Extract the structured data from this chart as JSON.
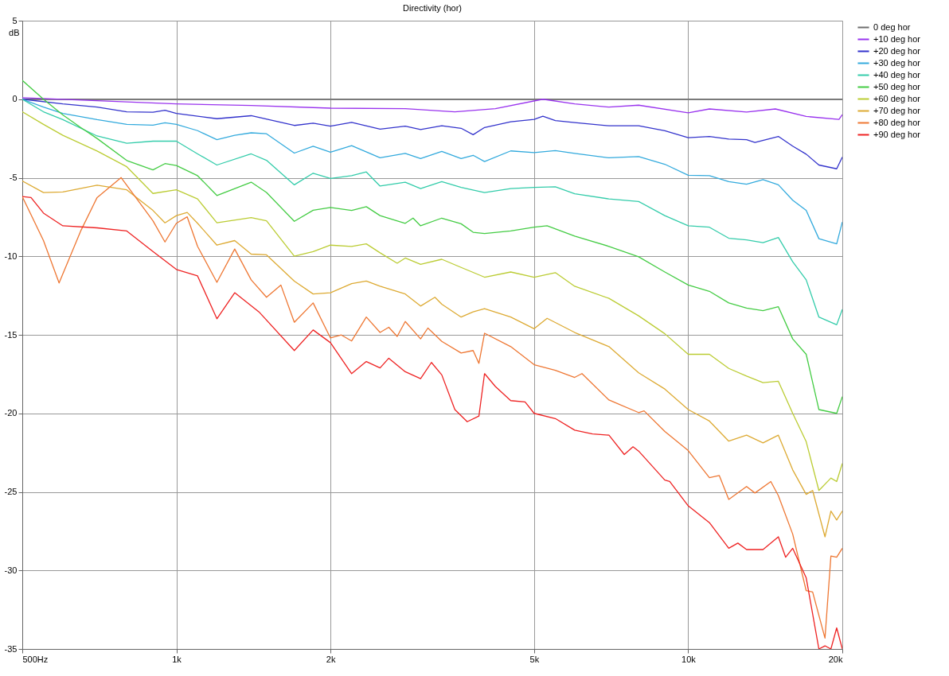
{
  "chart_data": {
    "type": "line",
    "title": "Directivity (hor)",
    "ylabel": "dB",
    "log": "x",
    "grid": true,
    "legend": "right",
    "line_style": "solid",
    "marker": "none",
    "xlim": [
      500,
      20000
    ],
    "ylim": [
      -35,
      5
    ],
    "xticks": [
      {
        "value": 500,
        "label": "500Hz"
      },
      {
        "value": 1000,
        "label": "1k"
      },
      {
        "value": 2000,
        "label": "2k"
      },
      {
        "value": 5000,
        "label": "5k"
      },
      {
        "value": 10000,
        "label": "10k"
      },
      {
        "value": 20000,
        "label": "20k"
      }
    ],
    "yticks": [
      5,
      0,
      -5,
      -10,
      -15,
      -20,
      -25,
      -30,
      -35
    ],
    "series": [
      {
        "name": "0 deg hor",
        "color": "#6e6e6e",
        "x": [
          500,
          20000
        ],
        "values": [
          0,
          0
        ]
      },
      {
        "name": "+10 deg hor",
        "color": "#9933ee",
        "x": [
          500,
          700,
          1000,
          1400,
          2000,
          2800,
          3500,
          4200,
          5200,
          6000,
          7000,
          8000,
          10000,
          11000,
          13000,
          14800,
          17000,
          19700,
          20000
        ],
        "values": [
          0.1,
          -0.1,
          -0.3,
          -0.4,
          -0.57,
          -0.6,
          -0.8,
          -0.6,
          0,
          -0.3,
          -0.5,
          -0.38,
          -0.87,
          -0.62,
          -0.82,
          -0.62,
          -1.1,
          -1.28,
          -0.98
        ]
      },
      {
        "name": "+20 deg hor",
        "color": "#3333cc",
        "x": [
          500,
          600,
          700,
          800,
          900,
          950,
          1000,
          1200,
          1400,
          1700,
          1850,
          2000,
          2200,
          2500,
          2800,
          3000,
          3300,
          3600,
          3800,
          4000,
          4500,
          5000,
          5200,
          5500,
          6000,
          7000,
          8000,
          9000,
          10000,
          11000,
          12000,
          13000,
          13500,
          15000,
          16000,
          17000,
          18000,
          19500,
          20000
        ],
        "values": [
          0,
          -0.3,
          -0.5,
          -0.8,
          -0.83,
          -0.7,
          -0.9,
          -1.24,
          -1.05,
          -1.67,
          -1.53,
          -1.72,
          -1.47,
          -1.9,
          -1.72,
          -1.93,
          -1.69,
          -1.85,
          -2.26,
          -1.8,
          -1.44,
          -1.28,
          -1.08,
          -1.36,
          -1.49,
          -1.69,
          -1.69,
          -2.01,
          -2.45,
          -2.37,
          -2.54,
          -2.58,
          -2.75,
          -2.37,
          -2.99,
          -3.5,
          -4.19,
          -4.43,
          -3.68
        ]
      },
      {
        "name": "+30 deg hor",
        "color": "#33aadd",
        "x": [
          500,
          550,
          600,
          700,
          800,
          900,
          950,
          1000,
          1100,
          1200,
          1300,
          1400,
          1500,
          1700,
          1850,
          2000,
          2200,
          2500,
          2800,
          3000,
          3300,
          3600,
          3800,
          4000,
          4500,
          5000,
          5500,
          6000,
          7000,
          8000,
          9000,
          10000,
          11000,
          12000,
          13000,
          14000,
          15000,
          16000,
          17000,
          18000,
          19500,
          20000
        ],
        "values": [
          0,
          -0.5,
          -0.9,
          -1.3,
          -1.6,
          -1.65,
          -1.5,
          -1.6,
          -2.0,
          -2.58,
          -2.3,
          -2.14,
          -2.2,
          -3.43,
          -2.99,
          -3.37,
          -2.96,
          -3.73,
          -3.45,
          -3.78,
          -3.32,
          -3.78,
          -3.57,
          -3.97,
          -3.29,
          -3.4,
          -3.27,
          -3.45,
          -3.73,
          -3.65,
          -4.14,
          -4.84,
          -4.87,
          -5.25,
          -5.41,
          -5.12,
          -5.45,
          -6.43,
          -7.08,
          -8.88,
          -9.21,
          -7.82
        ]
      },
      {
        "name": "+40 deg hor",
        "color": "#33ccaa",
        "x": [
          500,
          550,
          600,
          700,
          800,
          900,
          1000,
          1100,
          1200,
          1400,
          1500,
          1700,
          1850,
          2000,
          2200,
          2350,
          2500,
          2800,
          3000,
          3300,
          3600,
          4000,
          4500,
          5000,
          5500,
          6000,
          7000,
          8000,
          9000,
          10000,
          11000,
          12000,
          13000,
          14000,
          15000,
          16000,
          17000,
          18000,
          19500,
          20000
        ],
        "values": [
          0,
          -0.8,
          -1.3,
          -2.34,
          -2.8,
          -2.67,
          -2.67,
          -3.48,
          -4.19,
          -3.48,
          -3.89,
          -5.45,
          -4.71,
          -5.04,
          -4.87,
          -4.63,
          -5.53,
          -5.28,
          -5.69,
          -5.25,
          -5.61,
          -5.94,
          -5.69,
          -5.61,
          -5.58,
          -6.02,
          -6.35,
          -6.51,
          -7.41,
          -8.06,
          -8.15,
          -8.85,
          -8.96,
          -9.13,
          -8.8,
          -10.35,
          -11.5,
          -13.87,
          -14.36,
          -13.38
        ]
      },
      {
        "name": "+50 deg hor",
        "color": "#44cc44",
        "x": [
          500,
          550,
          600,
          650,
          700,
          800,
          900,
          950,
          1000,
          1100,
          1200,
          1400,
          1500,
          1700,
          1850,
          2000,
          2200,
          2350,
          2500,
          2800,
          2900,
          3000,
          3300,
          3600,
          3800,
          4000,
          4500,
          5000,
          5300,
          6000,
          7000,
          8000,
          9000,
          10000,
          11000,
          12000,
          13000,
          14000,
          15000,
          16000,
          17000,
          18000,
          19500,
          20000
        ],
        "values": [
          1.2,
          0,
          -1.0,
          -1.8,
          -2.5,
          -3.9,
          -4.5,
          -4.1,
          -4.22,
          -4.87,
          -6.13,
          -5.28,
          -5.94,
          -7.77,
          -7.07,
          -6.89,
          -7.08,
          -6.84,
          -7.41,
          -7.9,
          -7.57,
          -8.06,
          -7.57,
          -7.93,
          -8.47,
          -8.55,
          -8.39,
          -8.15,
          -8.06,
          -8.72,
          -9.37,
          -10.03,
          -11.0,
          -11.83,
          -12.23,
          -12.97,
          -13.3,
          -13.46,
          -13.21,
          -15.26,
          -16.24,
          -19.76,
          -20.0,
          -18.94
        ]
      },
      {
        "name": "+60 deg hor",
        "color": "#bbcc33",
        "x": [
          500,
          550,
          600,
          700,
          800,
          900,
          1000,
          1100,
          1200,
          1400,
          1500,
          1700,
          1850,
          2000,
          2200,
          2350,
          2500,
          2700,
          2800,
          3000,
          3300,
          3600,
          4000,
          4500,
          5000,
          5500,
          6000,
          7000,
          8000,
          9000,
          10000,
          11000,
          12000,
          13000,
          14000,
          15000,
          16000,
          17000,
          18000,
          19000,
          19500,
          20000
        ],
        "values": [
          -0.8,
          -1.6,
          -2.3,
          -3.3,
          -4.3,
          -6.0,
          -5.77,
          -6.35,
          -7.87,
          -7.54,
          -7.74,
          -9.99,
          -9.7,
          -9.29,
          -9.37,
          -9.21,
          -9.78,
          -10.44,
          -10.11,
          -10.51,
          -10.19,
          -10.71,
          -11.33,
          -11.0,
          -11.33,
          -11.04,
          -11.91,
          -12.68,
          -13.79,
          -14.93,
          -16.24,
          -16.24,
          -17.14,
          -17.63,
          -18.04,
          -17.96,
          -20.0,
          -21.8,
          -24.91,
          -24.12,
          -24.34,
          -23.19
        ]
      },
      {
        "name": "+70 deg hor",
        "color": "#ddaa33",
        "x": [
          500,
          550,
          600,
          700,
          800,
          900,
          950,
          1000,
          1050,
          1100,
          1200,
          1300,
          1400,
          1500,
          1700,
          1850,
          2000,
          2200,
          2350,
          2500,
          2800,
          3000,
          3200,
          3300,
          3600,
          3800,
          4000,
          4500,
          5000,
          5300,
          6000,
          7000,
          8000,
          9000,
          10000,
          11000,
          12000,
          13000,
          14000,
          15000,
          16000,
          17000,
          17500,
          18500,
          19000,
          19500,
          20000
        ],
        "values": [
          -5.2,
          -5.94,
          -5.9,
          -5.48,
          -5.77,
          -7.08,
          -7.87,
          -7.41,
          -7.21,
          -7.9,
          -9.29,
          -9.0,
          -9.86,
          -9.91,
          -11.58,
          -12.4,
          -12.32,
          -11.74,
          -11.58,
          -11.91,
          -12.4,
          -13.17,
          -12.61,
          -13.05,
          -13.87,
          -13.54,
          -13.33,
          -13.87,
          -14.61,
          -13.95,
          -14.85,
          -15.75,
          -17.42,
          -18.45,
          -19.76,
          -20.49,
          -21.77,
          -21.39,
          -21.88,
          -21.39,
          -23.6,
          -25.16,
          -24.91,
          -27.86,
          -26.22,
          -26.79,
          -26.22
        ]
      },
      {
        "name": "+80 deg hor",
        "color": "#ee7733",
        "x": [
          500,
          550,
          590,
          650,
          700,
          780,
          900,
          950,
          1000,
          1050,
          1100,
          1200,
          1300,
          1400,
          1500,
          1600,
          1700,
          1850,
          2000,
          2100,
          2200,
          2350,
          2500,
          2600,
          2700,
          2800,
          3000,
          3100,
          3300,
          3600,
          3800,
          3900,
          4000,
          4500,
          5000,
          5500,
          6000,
          6200,
          7000,
          8000,
          8200,
          9000,
          10000,
          11000,
          11500,
          12000,
          13000,
          13500,
          14500,
          15000,
          16000,
          17000,
          17500,
          18500,
          19000,
          19500,
          20000
        ],
        "values": [
          -6.2,
          -9.0,
          -11.7,
          -8.4,
          -6.26,
          -4.99,
          -7.74,
          -9.09,
          -7.9,
          -7.49,
          -9.37,
          -11.66,
          -9.54,
          -11.5,
          -12.61,
          -11.83,
          -14.2,
          -12.97,
          -15.2,
          -15.01,
          -15.39,
          -13.87,
          -14.85,
          -14.52,
          -15.1,
          -14.15,
          -15.26,
          -14.57,
          -15.42,
          -16.16,
          -16.0,
          -16.82,
          -14.9,
          -15.75,
          -16.9,
          -17.26,
          -17.71,
          -17.47,
          -19.15,
          -19.95,
          -19.84,
          -21.15,
          -22.37,
          -24.09,
          -23.96,
          -25.48,
          -24.66,
          -25.07,
          -24.34,
          -25.24,
          -27.69,
          -31.29,
          -31.37,
          -34.31,
          -29.08,
          -29.16,
          -28.59
        ]
      },
      {
        "name": "+90 deg hor",
        "color": "#ee2222",
        "x": [
          500,
          520,
          550,
          600,
          700,
          800,
          900,
          1000,
          1100,
          1200,
          1300,
          1450,
          1700,
          1850,
          2000,
          2200,
          2350,
          2500,
          2600,
          2800,
          3000,
          3150,
          3300,
          3500,
          3700,
          3900,
          4000,
          4200,
          4500,
          4800,
          5000,
          5500,
          6000,
          6500,
          7000,
          7500,
          7800,
          8000,
          9000,
          9200,
          10000,
          11000,
          12000,
          12500,
          13000,
          14000,
          15000,
          15500,
          16000,
          17000,
          18000,
          18500,
          19000,
          19500,
          20000
        ],
        "values": [
          -6.2,
          -6.26,
          -7.25,
          -8.06,
          -8.19,
          -8.39,
          -9.7,
          -10.84,
          -11.25,
          -13.98,
          -12.32,
          -13.54,
          -16.0,
          -14.69,
          -15.5,
          -17.47,
          -16.7,
          -17.11,
          -16.49,
          -17.35,
          -17.79,
          -16.76,
          -17.55,
          -19.76,
          -20.53,
          -20.17,
          -17.47,
          -18.29,
          -19.19,
          -19.27,
          -20.0,
          -20.33,
          -21.07,
          -21.31,
          -21.39,
          -22.62,
          -22.13,
          -22.4,
          -24.25,
          -24.34,
          -25.89,
          -26.96,
          -28.59,
          -28.26,
          -28.67,
          -28.67,
          -27.86,
          -29.16,
          -28.59,
          -30.47,
          -35,
          -34.8,
          -35,
          -33.66,
          -35
        ]
      }
    ]
  }
}
